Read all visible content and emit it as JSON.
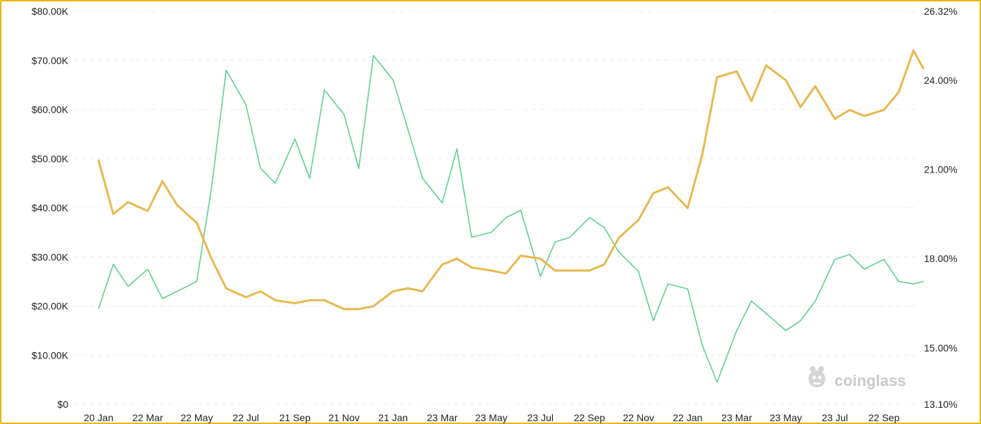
{
  "chart_data": {
    "type": "line",
    "x_ticks": [
      "20 Jan",
      "22 Mar",
      "22 May",
      "22 Jul",
      "21 Sep",
      "21 Nov",
      "21 Jan",
      "23 Mar",
      "23 May",
      "23 Jul",
      "22 Sep",
      "22 Nov",
      "22 Jan",
      "23 Mar",
      "23 May",
      "23 Jul",
      "22 Sep"
    ],
    "left_axis": {
      "ticks": [
        "$0",
        "$10.00K",
        "$20.00K",
        "$30.00K",
        "$40.00K",
        "$50.00K",
        "$60.00K",
        "$70.00K",
        "$80.00K"
      ],
      "ylim": [
        0,
        80000
      ]
    },
    "right_axis": {
      "ticks": [
        "13.10%",
        "15.00%",
        "18.00%",
        "21.00%",
        "24.00%",
        "26.32%"
      ],
      "tick_values": [
        13.1,
        15.0,
        18.0,
        21.0,
        24.0,
        26.32
      ],
      "ylim": [
        13.1,
        26.32
      ]
    },
    "grid": "horizontal-dashed",
    "series": [
      {
        "axis": "left",
        "color": "#5fd08f",
        "x_index": [
          0,
          0.3,
          0.6,
          1,
          1.3,
          1.6,
          2,
          2.3,
          2.6,
          3,
          3.3,
          3.6,
          4,
          4.3,
          4.6,
          5,
          5.3,
          5.6,
          6,
          6.3,
          6.6,
          7,
          7.3,
          7.6,
          8,
          8.3,
          8.6,
          9,
          9.3,
          9.6,
          10,
          10.3,
          10.6,
          11,
          11.3,
          11.6,
          12,
          12.3,
          12.6,
          13,
          13.3,
          13.6,
          14,
          14.3,
          14.6,
          15,
          15.3,
          15.6,
          16,
          16.3,
          16.6,
          16.8
        ],
        "values": [
          19500,
          28500,
          24000,
          27500,
          21500,
          23000,
          25000,
          44000,
          68000,
          61000,
          48000,
          45000,
          54000,
          46000,
          64000,
          59000,
          48000,
          71000,
          66000,
          56000,
          46000,
          41000,
          52000,
          34000,
          35000,
          38000,
          39500,
          26000,
          33000,
          34000,
          38000,
          36000,
          31000,
          27000,
          17000,
          24500,
          23500,
          12000,
          4500,
          15000,
          21000,
          18500,
          15000,
          17000,
          21000,
          29500,
          30500,
          27500,
          29500,
          25000,
          24500,
          25000
        ]
      },
      {
        "axis": "right",
        "color": "#e8b84e",
        "x_index": [
          0,
          0.3,
          0.6,
          1,
          1.3,
          1.6,
          2,
          2.3,
          2.6,
          3,
          3.3,
          3.6,
          4,
          4.3,
          4.6,
          5,
          5.3,
          5.6,
          6,
          6.3,
          6.6,
          7,
          7.3,
          7.6,
          8,
          8.3,
          8.6,
          9,
          9.3,
          9.6,
          10,
          10.3,
          10.6,
          11,
          11.3,
          11.6,
          12,
          12.3,
          12.6,
          13,
          13.3,
          13.6,
          14,
          14.3,
          14.6,
          15,
          15.3,
          15.6,
          16,
          16.3,
          16.6,
          16.8
        ],
        "values": [
          21.3,
          19.5,
          19.9,
          19.6,
          20.6,
          19.8,
          19.2,
          18.0,
          17.0,
          16.7,
          16.9,
          16.6,
          16.5,
          16.6,
          16.6,
          16.3,
          16.3,
          16.4,
          16.9,
          17.0,
          16.9,
          17.8,
          18.0,
          17.7,
          17.6,
          17.5,
          18.1,
          18.0,
          17.6,
          17.6,
          17.6,
          17.8,
          18.7,
          19.3,
          20.2,
          20.4,
          19.7,
          21.5,
          24.1,
          24.3,
          23.3,
          24.5,
          24.0,
          23.1,
          23.8,
          22.7,
          23.0,
          22.8,
          23.0,
          23.6,
          25.0,
          24.4
        ]
      }
    ],
    "watermark": "coinglass"
  }
}
